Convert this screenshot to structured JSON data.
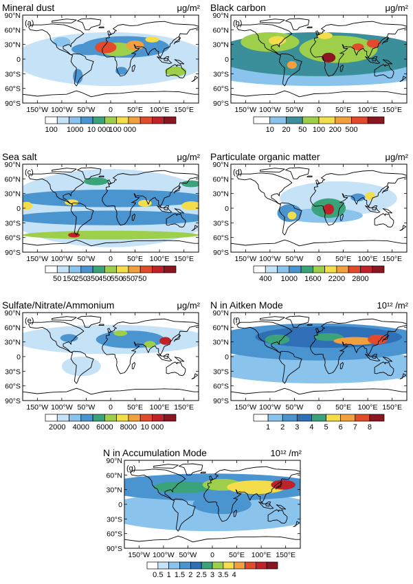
{
  "lat_labels": [
    "90°S",
    "60°S",
    "30°S",
    "0",
    "30°N",
    "60°N",
    "90°N"
  ],
  "lon_labels": [
    "150°W",
    "100°W",
    "50°W",
    "0",
    "50°E",
    "100°E",
    "150°E"
  ],
  "panels": [
    {
      "id": "a",
      "label": "(a)",
      "title": "Mineral dust",
      "unit": "μg/m²",
      "colorbar": {
        "labels": [
          "100",
          "1000",
          "10 000",
          "100 000"
        ],
        "label_positions": [
          0.5,
          2.5,
          4.5,
          6.5
        ],
        "colors": [
          "#ffffff",
          "#c6e2f7",
          "#8ac4ec",
          "#4a94cf",
          "#3aa37a",
          "#9dcf4a",
          "#f3dd4a",
          "#f2a03d",
          "#e24a2c",
          "#c0222a",
          "#8a1620"
        ]
      },
      "blobs": [
        {
          "lon": -10,
          "lat": 24,
          "rx": 22,
          "ry": 12,
          "level": 0.78
        },
        {
          "lon": 50,
          "lat": 28,
          "rx": 18,
          "ry": 10,
          "level": 0.7
        },
        {
          "lon": 85,
          "lat": 40,
          "rx": 14,
          "ry": 6,
          "level": 0.62
        },
        {
          "lon": 15,
          "lat": 20,
          "rx": 35,
          "ry": 14,
          "level": 0.5
        },
        {
          "lon": 30,
          "lat": 25,
          "rx": 90,
          "ry": 22,
          "level": 0.33
        },
        {
          "lon": -45,
          "lat": 20,
          "rx": 35,
          "ry": 12,
          "level": 0.3
        },
        {
          "lon": 133,
          "lat": -25,
          "rx": 22,
          "ry": 10,
          "level": 0.48
        },
        {
          "lon": 22,
          "lat": -24,
          "rx": 12,
          "ry": 8,
          "level": 0.36
        },
        {
          "lon": -67,
          "lat": -35,
          "rx": 10,
          "ry": 15,
          "level": 0.28
        },
        {
          "lon": -100,
          "lat": 35,
          "rx": 18,
          "ry": 10,
          "level": 0.22
        },
        {
          "lon": 0,
          "lat": 0,
          "rx": 200,
          "ry": 55,
          "level": 0.12
        }
      ]
    },
    {
      "id": "b",
      "label": "(b)",
      "title": "Black carbon",
      "unit": "μg/m²",
      "colorbar": {
        "labels": [
          "10",
          "20",
          "50",
          "100",
          "200",
          "500"
        ],
        "label_positions": [
          1,
          2,
          3,
          4,
          5,
          6
        ],
        "colors": [
          "#ffffff",
          "#8ac4ec",
          "#3a8f9a",
          "#9dcf4a",
          "#f3dd4a",
          "#f2a03d",
          "#e24a2c",
          "#8a1620"
        ]
      },
      "blobs": [
        {
          "lon": 20,
          "lat": 3,
          "rx": 14,
          "ry": 10,
          "level": 0.9
        },
        {
          "lon": 80,
          "lat": 25,
          "rx": 12,
          "ry": 7,
          "level": 0.8
        },
        {
          "lon": 112,
          "lat": 32,
          "rx": 14,
          "ry": 9,
          "level": 0.85
        },
        {
          "lon": -55,
          "lat": -12,
          "rx": 10,
          "ry": 8,
          "level": 0.72
        },
        {
          "lon": 12,
          "lat": 48,
          "rx": 16,
          "ry": 7,
          "level": 0.62
        },
        {
          "lon": -85,
          "lat": 38,
          "rx": 18,
          "ry": 9,
          "level": 0.55
        },
        {
          "lon": 40,
          "lat": 20,
          "rx": 80,
          "ry": 28,
          "level": 0.45
        },
        {
          "lon": -100,
          "lat": 35,
          "rx": 60,
          "ry": 20,
          "level": 0.42
        },
        {
          "lon": 0,
          "lat": 10,
          "rx": 220,
          "ry": 45,
          "level": 0.3
        },
        {
          "lon": 0,
          "lat": -30,
          "rx": 220,
          "ry": 25,
          "level": 0.22
        }
      ]
    },
    {
      "id": "c",
      "label": "(c)",
      "title": "Sea salt",
      "unit": "μg/m²",
      "colorbar": {
        "labels": [
          "50",
          "150",
          "250",
          "350",
          "450",
          "550",
          "650",
          "750"
        ],
        "label_positions": [
          1,
          2,
          3,
          4,
          5,
          6,
          7,
          8
        ],
        "colors": [
          "#ffffff",
          "#c6e2f7",
          "#8ac4ec",
          "#4a94cf",
          "#3aa37a",
          "#9dcf4a",
          "#f3dd4a",
          "#f2a03d",
          "#e24a2c",
          "#c0222a",
          "#8a1620"
        ]
      },
      "blobs": [
        {
          "lon": -75,
          "lat": -55,
          "rx": 12,
          "ry": 5,
          "level": 0.85
        },
        {
          "lon": 0,
          "lat": -55,
          "rx": 180,
          "ry": 9,
          "level": 0.5
        },
        {
          "lon": -80,
          "lat": 12,
          "rx": 14,
          "ry": 6,
          "level": 0.62
        },
        {
          "lon": 70,
          "lat": 10,
          "rx": 14,
          "ry": 7,
          "level": 0.58
        },
        {
          "lon": 165,
          "lat": 5,
          "rx": 20,
          "ry": 9,
          "level": 0.6
        },
        {
          "lon": -172,
          "lat": 5,
          "rx": 12,
          "ry": 8,
          "level": 0.58
        },
        {
          "lon": -30,
          "lat": 55,
          "rx": 25,
          "ry": 8,
          "level": 0.45
        },
        {
          "lon": 165,
          "lat": 50,
          "rx": 20,
          "ry": 7,
          "level": 0.4
        },
        {
          "lon": 0,
          "lat": 20,
          "rx": 200,
          "ry": 18,
          "level": 0.35
        },
        {
          "lon": 0,
          "lat": -20,
          "rx": 200,
          "ry": 15,
          "level": 0.32
        },
        {
          "lon": 0,
          "lat": 0,
          "rx": 220,
          "ry": 80,
          "level": 0.15
        }
      ]
    },
    {
      "id": "d",
      "label": "(d)",
      "title": "Particulate organic matter",
      "unit": "μg/m²",
      "colorbar": {
        "labels": [
          "400",
          "1000",
          "1600",
          "2200",
          "2800"
        ],
        "label_positions": [
          1,
          3,
          5,
          7,
          9
        ],
        "colors": [
          "#ffffff",
          "#c6e2f7",
          "#8ac4ec",
          "#4a94cf",
          "#3aa37a",
          "#9dcf4a",
          "#f3dd4a",
          "#f2a03d",
          "#e24a2c",
          "#c0222a",
          "#8a1620"
        ]
      },
      "blobs": [
        {
          "lon": 20,
          "lat": -2,
          "rx": 11,
          "ry": 11,
          "level": 0.9
        },
        {
          "lon": -55,
          "lat": -15,
          "rx": 9,
          "ry": 8,
          "level": 0.55
        },
        {
          "lon": 105,
          "lat": 25,
          "rx": 10,
          "ry": 8,
          "level": 0.55
        },
        {
          "lon": 20,
          "lat": 0,
          "rx": 35,
          "ry": 20,
          "level": 0.4
        },
        {
          "lon": 80,
          "lat": 22,
          "rx": 15,
          "ry": 8,
          "level": 0.35
        },
        {
          "lon": -60,
          "lat": -10,
          "rx": 25,
          "ry": 18,
          "level": 0.3
        },
        {
          "lon": 10,
          "lat": -15,
          "rx": 80,
          "ry": 15,
          "level": 0.2
        },
        {
          "lon": 40,
          "lat": 20,
          "rx": 120,
          "ry": 35,
          "level": 0.12
        }
      ]
    },
    {
      "id": "e",
      "label": "(e)",
      "title": "Sulfate/Nitrate/Ammonium",
      "unit": "μg/m²",
      "colorbar": {
        "labels": [
          "2000",
          "4000",
          "6000",
          "8000",
          "10 000"
        ],
        "label_positions": [
          1,
          3,
          5,
          7,
          9
        ],
        "colors": [
          "#ffffff",
          "#c6e2f7",
          "#8ac4ec",
          "#4a94cf",
          "#3aa37a",
          "#9dcf4a",
          "#f3dd4a",
          "#f2a03d",
          "#e24a2c",
          "#c0222a",
          "#8a1620"
        ]
      },
      "blobs": [
        {
          "lon": 112,
          "lat": 32,
          "rx": 12,
          "ry": 8,
          "level": 0.82
        },
        {
          "lon": 20,
          "lat": 48,
          "rx": 14,
          "ry": 6,
          "level": 0.5
        },
        {
          "lon": 80,
          "lat": 25,
          "rx": 12,
          "ry": 7,
          "level": 0.5
        },
        {
          "lon": 40,
          "lat": 35,
          "rx": 70,
          "ry": 18,
          "level": 0.32
        },
        {
          "lon": -85,
          "lat": 38,
          "rx": 18,
          "ry": 8,
          "level": 0.3
        },
        {
          "lon": 0,
          "lat": 35,
          "rx": 200,
          "ry": 30,
          "level": 0.15
        },
        {
          "lon": -60,
          "lat": -20,
          "rx": 40,
          "ry": 20,
          "level": 0.12
        }
      ]
    },
    {
      "id": "f",
      "label": "(f)",
      "title": "N in Aitken Mode",
      "unit": "10¹² /m²",
      "colorbar": {
        "labels": [
          "1",
          "2",
          "3",
          "4",
          "5",
          "6",
          "7",
          "8"
        ],
        "label_positions": [
          1,
          2,
          3,
          4,
          5,
          6,
          7,
          8
        ],
        "colors": [
          "#ffffff",
          "#8ac4ec",
          "#4a94cf",
          "#2f6fb6",
          "#3aa37a",
          "#f3dd4a",
          "#f2a03d",
          "#e24a2c",
          "#8a1620"
        ]
      },
      "blobs": [
        {
          "lon": 75,
          "lat": 32,
          "rx": 45,
          "ry": 8,
          "level": 0.75
        },
        {
          "lon": 120,
          "lat": 35,
          "rx": 20,
          "ry": 10,
          "level": 0.8
        },
        {
          "lon": 20,
          "lat": 40,
          "rx": 30,
          "ry": 8,
          "level": 0.55
        },
        {
          "lon": -85,
          "lat": 35,
          "rx": 25,
          "ry": 10,
          "level": 0.5
        },
        {
          "lon": 20,
          "lat": 40,
          "rx": 150,
          "ry": 22,
          "level": 0.4
        },
        {
          "lon": 0,
          "lat": 30,
          "rx": 230,
          "ry": 38,
          "level": 0.28
        },
        {
          "lon": 0,
          "lat": -20,
          "rx": 230,
          "ry": 35,
          "level": 0.15
        }
      ]
    },
    {
      "id": "g",
      "label": "(g)",
      "title": "N in Accumulation Mode",
      "unit": "10¹² /m²",
      "colorbar": {
        "labels": [
          "0.5",
          "1",
          "1.5",
          "2",
          "2.5",
          "3",
          "3.5",
          "4"
        ],
        "label_positions": [
          1,
          2,
          3,
          4,
          5,
          6,
          7,
          8
        ],
        "colors": [
          "#ffffff",
          "#c6e2f7",
          "#8ac4ec",
          "#4a94cf",
          "#2f6fb6",
          "#3aa37a",
          "#9dcf4a",
          "#f3dd4a",
          "#f2a03d",
          "#e24a2c",
          "#c0222a",
          "#8a1620"
        ]
      },
      "blobs": [
        {
          "lon": 145,
          "lat": 40,
          "rx": 25,
          "ry": 10,
          "level": 0.85
        },
        {
          "lon": 90,
          "lat": 35,
          "rx": 60,
          "ry": 14,
          "level": 0.62
        },
        {
          "lon": 20,
          "lat": 40,
          "rx": 40,
          "ry": 12,
          "level": 0.5
        },
        {
          "lon": -60,
          "lat": 35,
          "rx": 60,
          "ry": 12,
          "level": 0.42
        },
        {
          "lon": 0,
          "lat": 35,
          "rx": 230,
          "ry": 28,
          "level": 0.3
        },
        {
          "lon": 20,
          "lat": 0,
          "rx": 60,
          "ry": 20,
          "level": 0.32
        },
        {
          "lon": 0,
          "lat": -15,
          "rx": 230,
          "ry": 40,
          "level": 0.2
        }
      ]
    }
  ]
}
